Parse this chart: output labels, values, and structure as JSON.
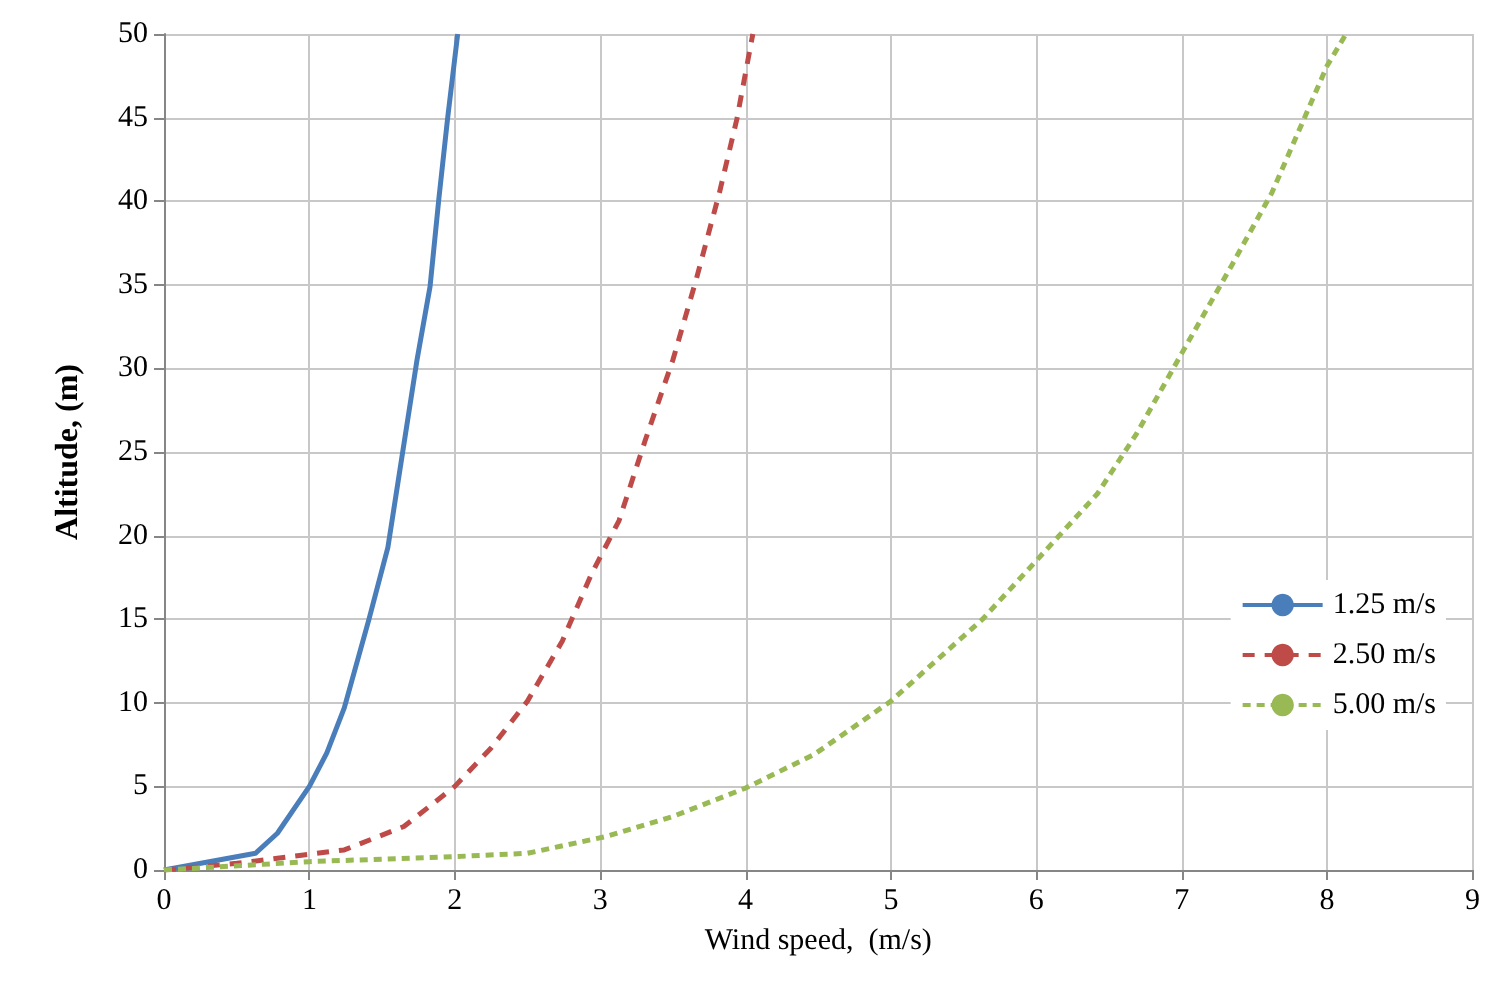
{
  "chart_data": {
    "type": "line",
    "xlabel": "Wind speed,  (m/s)",
    "ylabel": "Altitude, (m)",
    "xlim": [
      0,
      9
    ],
    "xticks": [
      0,
      1,
      2,
      3,
      4,
      5,
      6,
      7,
      8,
      9
    ],
    "ylim": [
      0,
      50
    ],
    "yticks": [
      0,
      5,
      10,
      15,
      20,
      25,
      30,
      35,
      40,
      45,
      50
    ],
    "grid": true,
    "legend": "right",
    "marker": "none",
    "series": [
      {
        "name": "1.25 m/s",
        "color": "#4a7ebb",
        "line_style": "solid",
        "x": [
          0,
          0.63,
          0.78,
          1,
          1.12,
          1.24,
          1.41,
          1.54,
          1.64,
          1.74,
          1.83,
          1.89,
          1.95,
          2.02
        ],
        "values": [
          0,
          1,
          2.2,
          5,
          7,
          9.7,
          15,
          19.3,
          24.9,
          30.5,
          34.9,
          40.1,
          44.9,
          50
        ]
      },
      {
        "name": "2.50 m/s",
        "color": "#be4b48",
        "line_style": "dashed",
        "x": [
          0,
          0.5,
          0.96,
          1.24,
          1.65,
          2,
          2.25,
          2.5,
          2.74,
          2.94,
          3.13,
          3.31,
          3.5,
          3.66,
          3.82,
          3.94,
          4.05
        ],
        "values": [
          0,
          0.4,
          0.9,
          1.2,
          2.6,
          5,
          7.3,
          10.1,
          13.7,
          17.7,
          20.9,
          25.7,
          30.5,
          35.3,
          40.5,
          44.9,
          50
        ]
      },
      {
        "name": "5.00 m/s",
        "color": "#98b954",
        "line_style": "dotted",
        "x": [
          0,
          1,
          2,
          2.5,
          3.04,
          3.5,
          4,
          4.47,
          5,
          5.63,
          6,
          6.42,
          6.69,
          7,
          7.34,
          7.62,
          8,
          8.13
        ],
        "values": [
          0,
          0.5,
          0.8,
          1,
          2,
          3.2,
          4.9,
          6.9,
          10.1,
          15,
          18.5,
          22.5,
          26.1,
          30.9,
          36.1,
          40.5,
          48.1,
          50
        ]
      }
    ]
  }
}
